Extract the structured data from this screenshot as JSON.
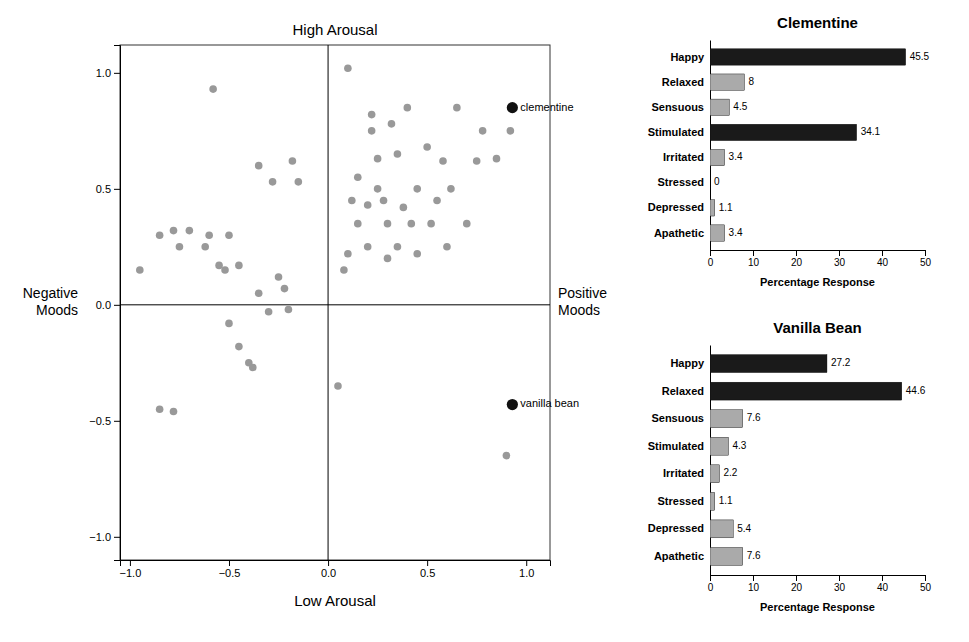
{
  "chart_data": [
    {
      "type": "scatter",
      "series": [
        {
          "color": "#999999",
          "x": [
            -0.95,
            -0.85,
            -0.78,
            -0.75,
            -0.7,
            -0.62,
            -0.6,
            -0.55,
            -0.52,
            -0.5,
            -0.5,
            -0.45,
            -0.45,
            -0.4,
            -0.38,
            -0.35,
            -0.35,
            -0.3,
            -0.28,
            -0.25,
            -0.22,
            -0.2,
            -0.18,
            -0.15,
            -0.85,
            -0.78,
            0.05,
            0.08,
            0.1,
            0.12,
            0.15,
            0.15,
            0.2,
            0.2,
            0.22,
            0.22,
            0.25,
            0.25,
            0.28,
            0.3,
            0.3,
            0.32,
            0.35,
            0.35,
            0.38,
            0.4,
            0.42,
            0.45,
            0.45,
            0.5,
            0.52,
            0.55,
            0.58,
            0.6,
            0.62,
            0.65,
            0.7,
            0.75,
            0.78,
            0.85,
            0.92,
            0.1,
            -0.58,
            0.9
          ],
          "values": [
            0.15,
            0.3,
            0.32,
            0.25,
            0.32,
            0.25,
            0.3,
            0.17,
            0.15,
            0.3,
            -0.08,
            -0.18,
            0.17,
            -0.25,
            -0.27,
            0.05,
            0.6,
            -0.03,
            0.53,
            0.12,
            0.07,
            -0.02,
            0.62,
            0.53,
            -0.45,
            -0.46,
            -0.35,
            0.15,
            0.22,
            0.45,
            0.35,
            0.55,
            0.25,
            0.43,
            0.75,
            0.82,
            0.63,
            0.5,
            0.45,
            0.2,
            0.35,
            0.78,
            0.25,
            0.65,
            0.42,
            0.85,
            0.35,
            0.5,
            0.22,
            0.68,
            0.35,
            0.45,
            0.62,
            0.25,
            0.5,
            0.85,
            0.35,
            0.62,
            0.75,
            0.63,
            0.75,
            1.02,
            0.93,
            -0.65
          ]
        },
        {
          "color": "#111111",
          "x": [
            0.93,
            0.93
          ],
          "values": [
            0.85,
            -0.43
          ],
          "point_labels": [
            "clementine",
            "vanilla bean"
          ]
        }
      ],
      "annotations": [
        "High Arousal",
        "Low Arousal",
        "Negative\nMoods",
        "Positive\nMoods"
      ],
      "reference_lines": {
        "x": [
          0
        ],
        "y": [
          0
        ]
      },
      "xlim": [
        -1.05,
        1.12
      ],
      "ylim": [
        -1.1,
        1.12
      ],
      "xticks": [
        {
          "value": -1,
          "label": "−1.0"
        },
        {
          "value": -0.5,
          "label": "−0.5"
        },
        {
          "value": 0,
          "label": "0.0"
        },
        {
          "value": 0.5,
          "label": "0.5"
        },
        {
          "value": 1,
          "label": "1.0"
        }
      ],
      "yticks": [
        {
          "value": -1,
          "label": "−1.0"
        },
        {
          "value": -0.5,
          "label": "−0.5"
        },
        {
          "value": 0,
          "label": "0.0"
        },
        {
          "value": 0.5,
          "label": "0.5"
        },
        {
          "value": 1,
          "label": "1.0"
        }
      ],
      "grid": false
    },
    {
      "type": "bar",
      "orientation": "horizontal",
      "title": "Clementine",
      "categories": [
        "Happy",
        "Relaxed",
        "Sensuous",
        "Stimulated",
        "Irritated",
        "Stressed",
        "Depressed",
        "Apathetic"
      ],
      "values": [
        45.5,
        8.0,
        4.5,
        34.1,
        3.4,
        0.0,
        1.1,
        3.4
      ],
      "colors": [
        "#1a1a1a",
        "#aaaaaa",
        "#aaaaaa",
        "#1a1a1a",
        "#aaaaaa",
        "#aaaaaa",
        "#aaaaaa",
        "#aaaaaa"
      ],
      "xlabel": "Percentage Response",
      "xlim": [
        0,
        50
      ],
      "xticks": [
        0,
        10,
        20,
        30,
        40,
        50
      ],
      "data_labels": true,
      "grid": false
    },
    {
      "type": "bar",
      "orientation": "horizontal",
      "title": "Vanilla Bean",
      "categories": [
        "Happy",
        "Relaxed",
        "Sensuous",
        "Stimulated",
        "Irritated",
        "Stressed",
        "Depressed",
        "Apathetic"
      ],
      "values": [
        27.2,
        44.6,
        7.6,
        4.3,
        2.2,
        1.1,
        5.4,
        7.6
      ],
      "colors": [
        "#1a1a1a",
        "#1a1a1a",
        "#aaaaaa",
        "#aaaaaa",
        "#aaaaaa",
        "#aaaaaa",
        "#aaaaaa",
        "#aaaaaa"
      ],
      "xlabel": "Percentage Response",
      "xlim": [
        0,
        50
      ],
      "xticks": [
        0,
        10,
        20,
        30,
        40,
        50
      ],
      "data_labels": true,
      "grid": false
    }
  ]
}
